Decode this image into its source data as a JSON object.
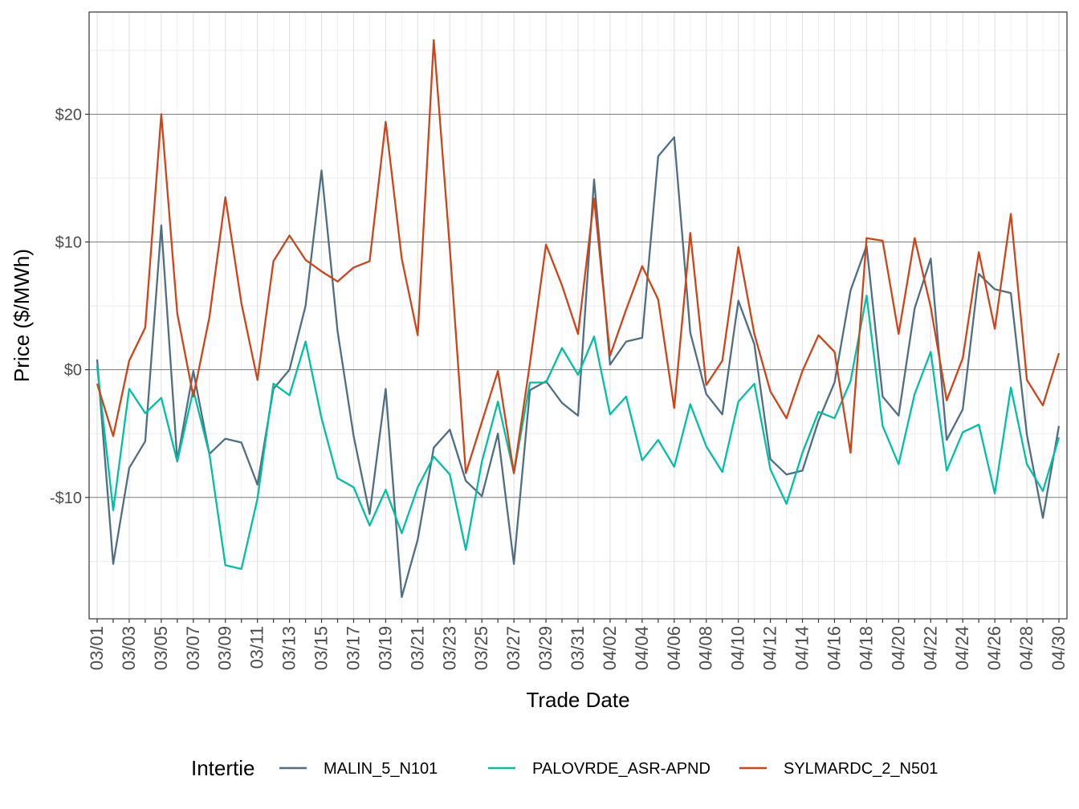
{
  "chart_data": {
    "type": "line",
    "title": "",
    "xlabel": "Trade Date",
    "ylabel": "Price ($/MWh)",
    "ylim": [
      -19.5,
      28
    ],
    "y_ticks": [
      -10,
      0,
      10,
      20
    ],
    "y_tick_labels": [
      "-$10",
      "$0",
      "$10",
      "$20"
    ],
    "x_tick_labels": [
      "03/01",
      "03/03",
      "03/05",
      "03/07",
      "03/09",
      "03/11",
      "03/13",
      "03/15",
      "03/17",
      "03/19",
      "03/21",
      "03/23",
      "03/25",
      "03/27",
      "03/29",
      "03/31",
      "04/02",
      "04/04",
      "04/06",
      "04/08",
      "04/10",
      "04/12",
      "04/14",
      "04/16",
      "04/18",
      "04/20",
      "04/22",
      "04/24",
      "04/26",
      "04/28",
      "04/30"
    ],
    "grid": true,
    "legend": {
      "title": "Intertie",
      "position": "bottom"
    },
    "x": [
      "03/01",
      "03/02",
      "03/03",
      "03/04",
      "03/05",
      "03/06",
      "03/07",
      "03/08",
      "03/09",
      "03/10",
      "03/11",
      "03/12",
      "03/13",
      "03/14",
      "03/15",
      "03/16",
      "03/17",
      "03/18",
      "03/19",
      "03/20",
      "03/21",
      "03/22",
      "03/23",
      "03/24",
      "03/25",
      "03/26",
      "03/27",
      "03/28",
      "03/29",
      "03/30",
      "03/31",
      "04/01",
      "04/02",
      "04/03",
      "04/04",
      "04/05",
      "04/06",
      "04/07",
      "04/08",
      "04/09",
      "04/10",
      "04/11",
      "04/12",
      "04/13",
      "04/14",
      "04/15",
      "04/16",
      "04/17",
      "04/18",
      "04/19",
      "04/20",
      "04/21",
      "04/22",
      "04/23",
      "04/24",
      "04/25",
      "04/26",
      "04/27",
      "04/28",
      "04/29",
      "04/30"
    ],
    "series": [
      {
        "name": "MALIN_5_N101",
        "color": "#4f6e82",
        "values": [
          0.8,
          -15.2,
          -7.7,
          -5.6,
          11.3,
          -7.1,
          -0.1,
          -6.6,
          -5.4,
          -5.7,
          -9.0,
          -1.5,
          0.0,
          5.0,
          15.6,
          3.0,
          -5.2,
          -11.3,
          -1.5,
          -17.8,
          -13.3,
          -6.1,
          -4.7,
          -8.7,
          -9.9,
          -5.0,
          -15.2,
          -1.6,
          -0.9,
          -2.6,
          -3.6,
          14.9,
          0.4,
          2.2,
          2.5,
          16.7,
          18.2,
          2.9,
          -1.9,
          -3.5,
          5.4,
          2.0,
          -7.0,
          -8.2,
          -7.9,
          -4.0,
          -1.0,
          6.2,
          9.7,
          -2.1,
          -3.6,
          4.8,
          8.7,
          -5.5,
          -3.1,
          7.5,
          6.3,
          6.0,
          -5.1,
          -11.6,
          -4.4
        ]
      },
      {
        "name": "PALOVRDE_ASR-APND",
        "color": "#00bfa5",
        "values": [
          0.3,
          -11.0,
          -1.5,
          -3.4,
          -2.2,
          -7.2,
          -1.6,
          -6.6,
          -15.3,
          -15.6,
          -10.1,
          -1.1,
          -2.0,
          2.2,
          -3.8,
          -8.5,
          -9.2,
          -12.2,
          -9.4,
          -12.8,
          -9.2,
          -6.8,
          -8.2,
          -14.1,
          -7.2,
          -2.5,
          -8.1,
          -1.0,
          -1.0,
          1.7,
          -0.4,
          2.6,
          -3.5,
          -2.1,
          -7.1,
          -5.5,
          -7.6,
          -2.7,
          -6.0,
          -8.0,
          -2.5,
          -1.1,
          -7.8,
          -10.5,
          -6.5,
          -3.3,
          -3.8,
          -0.9,
          5.8,
          -4.4,
          -7.4,
          -1.9,
          1.4,
          -7.9,
          -4.9,
          -4.3,
          -9.7,
          -1.4,
          -7.4,
          -9.5,
          -5.3
        ]
      },
      {
        "name": "SYLMARDC_2_N501",
        "color": "#cd4419",
        "values": [
          -1.1,
          -5.2,
          0.7,
          3.3,
          20.0,
          4.4,
          -2.1,
          4.1,
          13.5,
          5.2,
          -0.8,
          8.5,
          10.5,
          8.6,
          7.7,
          6.9,
          8.0,
          8.5,
          19.4,
          8.7,
          2.7,
          25.8,
          9.5,
          -8.1,
          -4.1,
          -0.1,
          -8.1,
          0.5,
          9.8,
          6.6,
          2.8,
          13.4,
          1.1,
          4.7,
          8.1,
          5.5,
          -3.0,
          10.7,
          -1.2,
          0.7,
          9.6,
          2.8,
          -1.7,
          -3.8,
          -0.1,
          2.7,
          1.4,
          -6.5,
          10.3,
          10.1,
          2.8,
          10.3,
          4.9,
          -2.4,
          0.9,
          9.2,
          3.2,
          12.2,
          -0.8,
          -2.8,
          1.3
        ]
      }
    ]
  }
}
